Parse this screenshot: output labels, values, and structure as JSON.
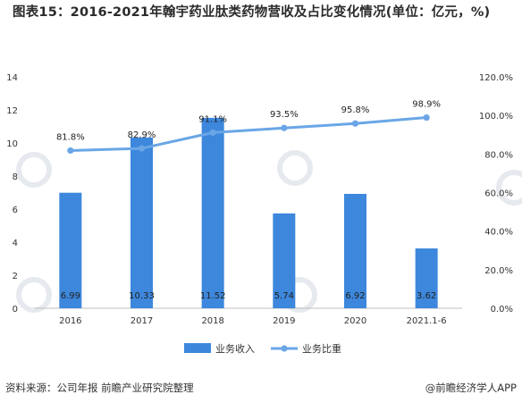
{
  "title": "图表15：2016-2021年翰宇药业肽类药物营收及占比变化情况(单位：亿元，%)",
  "source": "资料来源：公司年报 前瞻产业研究院整理",
  "brand": "@前瞻经济学人APP",
  "colors": {
    "bar": "#3d87dc",
    "line": "#6aa6e6",
    "axis": "#bfbfbf"
  },
  "chart_data": {
    "type": "bar",
    "categories": [
      "2016",
      "2017",
      "2018",
      "2019",
      "2020",
      "2021.1-6"
    ],
    "series": [
      {
        "name": "业务收入",
        "type": "bar",
        "axis": "left",
        "values": [
          6.99,
          10.33,
          11.52,
          5.74,
          6.92,
          3.62
        ],
        "labels": [
          "6.99",
          "10.33",
          "11.52",
          "5.74",
          "6.92",
          "3.62"
        ]
      },
      {
        "name": "业务比重",
        "type": "line",
        "axis": "right",
        "values": [
          81.8,
          82.9,
          91.1,
          93.5,
          95.8,
          98.9
        ],
        "labels": [
          "81.8%",
          "82.9%",
          "91.1%",
          "93.5%",
          "95.8%",
          "98.9%"
        ]
      }
    ],
    "ylim_left": [
      0,
      14
    ],
    "yticks_left": [
      "0",
      "2",
      "4",
      "6",
      "8",
      "10",
      "12",
      "14"
    ],
    "ylim_right": [
      0,
      120
    ],
    "yticks_right": [
      "0.0%",
      "20.0%",
      "40.0%",
      "60.0%",
      "80.0%",
      "100.0%",
      "120.0%"
    ],
    "grid": false,
    "legend_position": "bottom"
  }
}
